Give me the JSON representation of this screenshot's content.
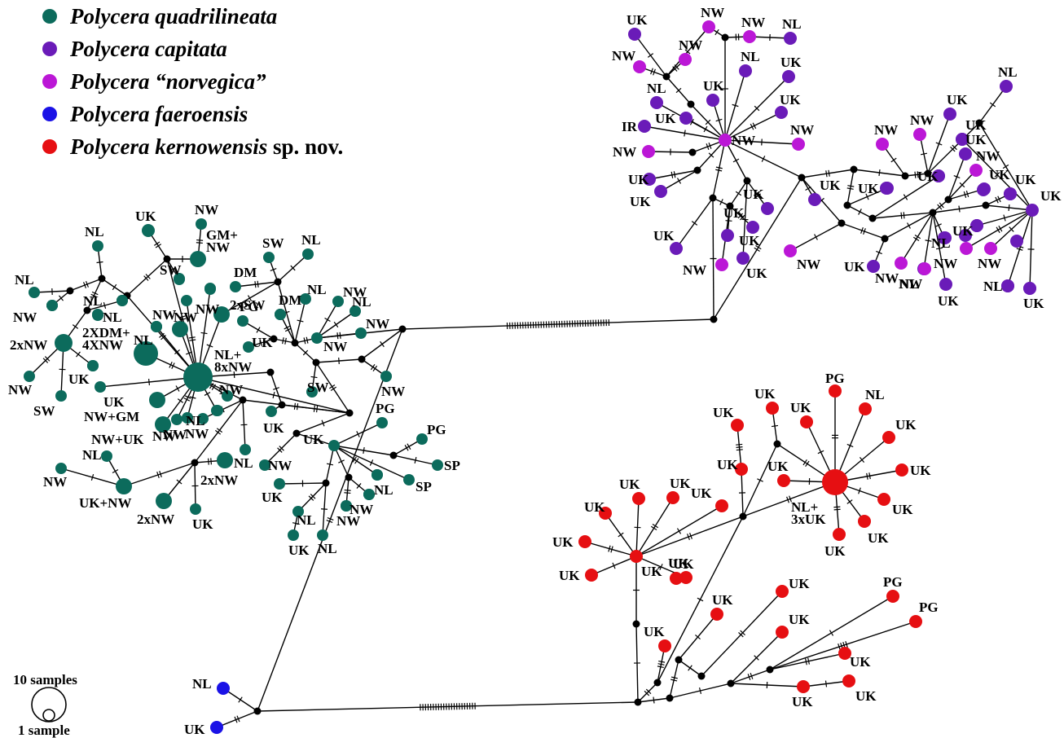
{
  "colors": {
    "quadrilineata": "#0c6b5c",
    "capitata": "#6a1bb8",
    "norvegica": "#bb17d6",
    "faeroensis": "#1a12e6",
    "kernowensis": "#e60f12",
    "black": "#000000"
  },
  "legend": [
    {
      "key": "quadrilineata",
      "name": "Polycera quadrilineata",
      "suffix": ""
    },
    {
      "key": "capitata",
      "name": "Polycera capitata",
      "suffix": ""
    },
    {
      "key": "norvegica",
      "name": "Polycera “norvegica”",
      "suffix": ""
    },
    {
      "key": "faeroensis",
      "name": "Polycera faeroensis",
      "suffix": ""
    },
    {
      "key": "kernowensis",
      "name": "Polycera kernowensis",
      "suffix": " sp. nov."
    }
  ],
  "scale": {
    "large": "10 samples",
    "small": "1 sample"
  },
  "network": {
    "nodes": [
      {
        "id": "qh",
        "s": "quadrilineata",
        "c": "NL+|8xNW",
        "r": 18
      },
      {
        "id": "q2",
        "s": "quadrilineata",
        "c": "2XDM+|4XNW",
        "r": 15
      },
      {
        "id": "q3",
        "s": "quadrilineata",
        "c": "2xNW",
        "r": 11
      },
      {
        "id": "q4",
        "s": "quadrilineata",
        "c": "UK+NW",
        "r": 10
      },
      {
        "id": "q5",
        "s": "quadrilineata",
        "c": "GM+|NW",
        "r": 10
      },
      {
        "id": "q6",
        "s": "quadrilineata",
        "c": "2xSW",
        "r": 10
      },
      {
        "id": "q7",
        "s": "quadrilineata",
        "c": "NW+GM",
        "r": 10
      },
      {
        "id": "q8",
        "s": "quadrilineata",
        "c": "NW+UK",
        "r": 10
      },
      {
        "id": "q9",
        "s": "quadrilineata",
        "c": "2xNW",
        "r": 10
      },
      {
        "id": "q10",
        "s": "quadrilineata",
        "c": "2xNW",
        "r": 10
      },
      {
        "id": "q11",
        "s": "quadrilineata",
        "c": "NW",
        "r": 10
      },
      {
        "id": "q12",
        "s": "quadrilineata",
        "c": "UK",
        "r": 8
      },
      {
        "id": "q13",
        "s": "quadrilineata",
        "c": "NL",
        "r": 7
      },
      {
        "id": "q14",
        "s": "quadrilineata",
        "c": "NL",
        "r": 7
      },
      {
        "id": "q15",
        "s": "quadrilineata",
        "c": "NW",
        "r": 7
      },
      {
        "id": "q16",
        "s": "quadrilineata",
        "c": "NW",
        "r": 7
      },
      {
        "id": "q17",
        "s": "quadrilineata",
        "c": "SW",
        "r": 7
      },
      {
        "id": "q18",
        "s": "quadrilineata",
        "c": "UK",
        "r": 7
      },
      {
        "id": "q19",
        "s": "quadrilineata",
        "c": "NW",
        "r": 7
      },
      {
        "id": "q20",
        "s": "quadrilineata",
        "c": "SW",
        "r": 7
      },
      {
        "id": "q21",
        "s": "quadrilineata",
        "c": "NL",
        "r": 7
      },
      {
        "id": "q22",
        "s": "quadrilineata",
        "c": "SW",
        "r": 7
      },
      {
        "id": "q23",
        "s": "quadrilineata",
        "c": "DM",
        "r": 7
      },
      {
        "id": "q24",
        "s": "quadrilineata",
        "c": "NL",
        "r": 7
      },
      {
        "id": "q25",
        "s": "quadrilineata",
        "c": "NW",
        "r": 7
      },
      {
        "id": "q26",
        "s": "quadrilineata",
        "c": "NL",
        "r": 7
      },
      {
        "id": "q27",
        "s": "quadrilineata",
        "c": "NW",
        "r": 7
      },
      {
        "id": "q28",
        "s": "quadrilineata",
        "c": "NW",
        "r": 7
      },
      {
        "id": "q29",
        "s": "quadrilineata",
        "c": "DM",
        "r": 7
      },
      {
        "id": "q30",
        "s": "quadrilineata",
        "c": "NL",
        "r": 7
      },
      {
        "id": "q31",
        "s": "quadrilineata",
        "c": "PG",
        "r": 7
      },
      {
        "id": "q32",
        "s": "quadrilineata",
        "c": "UK",
        "r": 7
      },
      {
        "id": "q33",
        "s": "quadrilineata",
        "c": "UK",
        "r": 7
      },
      {
        "id": "q34",
        "s": "quadrilineata",
        "c": "SW",
        "r": 7
      },
      {
        "id": "q35",
        "s": "quadrilineata",
        "c": "NW",
        "r": 7
      },
      {
        "id": "q36",
        "s": "quadrilineata",
        "c": "NW",
        "r": 7
      },
      {
        "id": "q37",
        "s": "quadrilineata",
        "c": "NW",
        "r": 7
      },
      {
        "id": "q38",
        "s": "quadrilineata",
        "c": "NL",
        "r": 7
      },
      {
        "id": "q39",
        "s": "quadrilineata",
        "c": "NL",
        "r": 7
      },
      {
        "id": "q40",
        "s": "quadrilineata",
        "c": "NW",
        "r": 7
      },
      {
        "id": "q41",
        "s": "quadrilineata",
        "c": "UK",
        "r": 7
      },
      {
        "id": "q42",
        "s": "quadrilineata",
        "c": "UK",
        "r": 7
      },
      {
        "id": "q43",
        "s": "quadrilineata",
        "c": "PG",
        "r": 7
      },
      {
        "id": "q44",
        "s": "quadrilineata",
        "c": "PG",
        "r": 7
      },
      {
        "id": "q45",
        "s": "quadrilineata",
        "c": "SP",
        "r": 7
      },
      {
        "id": "q46",
        "s": "quadrilineata",
        "c": "SP",
        "r": 7
      },
      {
        "id": "q47",
        "s": "quadrilineata",
        "c": "NW",
        "r": 7
      },
      {
        "id": "q48",
        "s": "quadrilineata",
        "c": "UK",
        "r": 7
      },
      {
        "id": "q49",
        "s": "quadrilineata",
        "c": "NL",
        "r": 7
      },
      {
        "id": "q50",
        "s": "quadrilineata",
        "c": "NW",
        "r": 7
      },
      {
        "id": "q51",
        "s": "quadrilineata",
        "c": "NW",
        "r": 7
      },
      {
        "id": "q52",
        "s": "quadrilineata",
        "c": "NL",
        "r": 7
      },
      {
        "id": "q53",
        "s": "quadrilineata",
        "c": "UK",
        "r": 7
      },
      {
        "id": "q54",
        "s": "quadrilineata",
        "c": "NL",
        "r": 7
      },
      {
        "id": "q55",
        "s": "quadrilineata",
        "c": "UK",
        "r": 7
      },
      {
        "id": "q56",
        "s": "quadrilineata",
        "c": "NL",
        "r": 7
      },
      {
        "id": "q57",
        "s": "quadrilineata",
        "c": "NL",
        "r": 7
      },
      {
        "id": "q58",
        "s": "quadrilineata",
        "c": "NL",
        "r": 7
      },
      {
        "id": "q59",
        "s": "quadrilineata",
        "c": "NW",
        "r": 7
      },
      {
        "id": "q60",
        "s": "quadrilineata",
        "c": "NW",
        "r": 7
      },
      {
        "id": "q61",
        "s": "quadrilineata",
        "c": "NW",
        "r": 7
      },
      {
        "id": "q62",
        "s": "quadrilineata",
        "c": "NW",
        "r": 7
      },
      {
        "id": "q63",
        "s": "quadrilineata",
        "c": "",
        "r": 7
      },
      {
        "id": "q64",
        "s": "quadrilineata",
        "c": "",
        "r": 7
      },
      {
        "id": "q65",
        "s": "quadrilineata",
        "c": "",
        "r": 7
      },
      {
        "id": "q66",
        "s": "quadrilineata",
        "c": "",
        "r": 7
      },
      {
        "id": "q67",
        "s": "quadrilineata",
        "c": "",
        "r": 7
      },
      {
        "id": "q68",
        "s": "quadrilineata",
        "c": "",
        "r": 7
      },
      {
        "id": "q69",
        "s": "quadrilineata",
        "c": "",
        "r": 7
      },
      {
        "id": "q70",
        "s": "quadrilineata",
        "c": "",
        "r": 7
      },
      {
        "id": "q71",
        "s": "quadrilineata",
        "c": "",
        "r": 7
      },
      {
        "id": "q72",
        "s": "quadrilineata",
        "c": "",
        "r": 7
      },
      {
        "id": "q73",
        "s": "quadrilineata",
        "c": "",
        "r": 7
      },
      {
        "id": "q74",
        "s": "quadrilineata",
        "c": "",
        "r": 7
      },
      {
        "id": "q75",
        "s": "quadrilineata",
        "c": "",
        "r": 7
      },
      {
        "id": "ch",
        "s": "norvegica",
        "c": "NW",
        "r": 8
      },
      {
        "id": "c1",
        "s": "capitata",
        "c": "UK",
        "r": 8
      },
      {
        "id": "c2",
        "s": "norvegica",
        "c": "NW",
        "r": 8
      },
      {
        "id": "c3",
        "s": "norvegica",
        "c": "NW",
        "r": 8
      },
      {
        "id": "c4",
        "s": "capitata",
        "c": "NL",
        "r": 8
      },
      {
        "id": "c5",
        "s": "norvegica",
        "c": "NW",
        "r": 8
      },
      {
        "id": "c6",
        "s": "norvegica",
        "c": "NW",
        "r": 8
      },
      {
        "id": "c7",
        "s": "capitata",
        "c": "NL",
        "r": 8
      },
      {
        "id": "c8",
        "s": "capitata",
        "c": "NL",
        "r": 8
      },
      {
        "id": "c9",
        "s": "capitata",
        "c": "UK",
        "r": 8
      },
      {
        "id": "c10",
        "s": "capitata",
        "c": "UK",
        "r": 8
      },
      {
        "id": "c11",
        "s": "capitata",
        "c": "UK",
        "r": 8
      },
      {
        "id": "c12",
        "s": "capitata",
        "c": "IR",
        "r": 8
      },
      {
        "id": "c13",
        "s": "capitata",
        "c": "UK",
        "r": 8
      },
      {
        "id": "c14",
        "s": "norvegica",
        "c": "NW",
        "r": 8
      },
      {
        "id": "c15",
        "s": "capitata",
        "c": "UK",
        "r": 8
      },
      {
        "id": "c16",
        "s": "capitata",
        "c": "UK",
        "r": 8
      },
      {
        "id": "c17",
        "s": "norvegica",
        "c": "NW",
        "r": 8
      },
      {
        "id": "c18",
        "s": "capitata",
        "c": "UK",
        "r": 8
      },
      {
        "id": "c19",
        "s": "capitata",
        "c": "UK",
        "r": 8
      },
      {
        "id": "c20",
        "s": "capitata",
        "c": "UK",
        "r": 8
      },
      {
        "id": "c21",
        "s": "capitata",
        "c": "UK",
        "r": 8
      },
      {
        "id": "c22",
        "s": "capitata",
        "c": "UK",
        "r": 8
      },
      {
        "id": "c23",
        "s": "norvegica",
        "c": "NW",
        "r": 8
      },
      {
        "id": "c24",
        "s": "norvegica",
        "c": "NW",
        "r": 8
      },
      {
        "id": "c25",
        "s": "capitata",
        "c": "UK",
        "r": 8
      },
      {
        "id": "c26",
        "s": "capitata",
        "c": "UK",
        "r": 8
      },
      {
        "id": "c27",
        "s": "norvegica",
        "c": "NW",
        "r": 8
      },
      {
        "id": "c28",
        "s": "norvegica",
        "c": "NW",
        "r": 8
      },
      {
        "id": "c29",
        "s": "norvegica",
        "c": "NW",
        "r": 8
      },
      {
        "id": "c30",
        "s": "capitata",
        "c": "UK",
        "r": 8
      },
      {
        "id": "c31",
        "s": "capitata",
        "c": "UK",
        "r": 8
      },
      {
        "id": "c32",
        "s": "capitata",
        "c": "NL",
        "r": 8
      },
      {
        "id": "c33",
        "s": "capitata",
        "c": "UK",
        "r": 8
      },
      {
        "id": "c34",
        "s": "capitata",
        "c": "UK",
        "r": 8
      },
      {
        "id": "c35",
        "s": "norvegica",
        "c": "NW",
        "r": 8
      },
      {
        "id": "c36",
        "s": "norvegica",
        "c": "NW",
        "r": 8
      },
      {
        "id": "c37",
        "s": "capitata",
        "c": "UK",
        "r": 8
      },
      {
        "id": "c38",
        "s": "capitata",
        "c": "UK",
        "r": 8
      },
      {
        "id": "c39",
        "s": "capitata",
        "c": "NL",
        "r": 8
      },
      {
        "id": "c40",
        "s": "norvegica",
        "c": "NW",
        "r": 8
      },
      {
        "id": "c41",
        "s": "capitata",
        "c": "NL",
        "r": 8
      },
      {
        "id": "c42",
        "s": "capitata",
        "c": "NL",
        "r": 8
      },
      {
        "id": "c43",
        "s": "capitata",
        "c": "UK",
        "r": 8
      },
      {
        "id": "c44",
        "s": "capitata",
        "c": "UK",
        "r": 8
      },
      {
        "id": "c45",
        "s": "capitata",
        "c": "UK",
        "r": 8
      },
      {
        "id": "c46",
        "s": "capitata",
        "c": "UK",
        "r": 8
      },
      {
        "id": "c47",
        "s": "capitata",
        "c": "UK",
        "r": 8
      },
      {
        "id": "c48",
        "s": "norvegica",
        "c": "NW",
        "r": 8
      },
      {
        "id": "c49",
        "s": "capitata",
        "c": "",
        "r": 8
      },
      {
        "id": "c50",
        "s": "capitata",
        "c": "",
        "r": 8
      },
      {
        "id": "c51",
        "s": "capitata",
        "c": "",
        "r": 8
      },
      {
        "id": "c52",
        "s": "capitata",
        "c": "",
        "r": 8
      },
      {
        "id": "c53",
        "s": "capitata",
        "c": "",
        "r": 8
      },
      {
        "id": "c54",
        "s": "capitata",
        "c": "",
        "r": 8
      },
      {
        "id": "c55",
        "s": "capitata",
        "c": "",
        "r": 8
      },
      {
        "id": "c56",
        "s": "capitata",
        "c": "",
        "r": 8
      },
      {
        "id": "c57",
        "s": "capitata",
        "c": "",
        "r": 8
      },
      {
        "id": "c58",
        "s": "capitata",
        "c": "",
        "r": 8
      },
      {
        "id": "c59",
        "s": "capitata",
        "c": "",
        "r": 8
      },
      {
        "id": "kh",
        "s": "kernowensis",
        "c": "NL+|3xUK",
        "r": 16
      },
      {
        "id": "k1",
        "s": "kernowensis",
        "c": "PG",
        "r": 8
      },
      {
        "id": "k2",
        "s": "kernowensis",
        "c": "NL",
        "r": 8
      },
      {
        "id": "k3",
        "s": "kernowensis",
        "c": "UK",
        "r": 8
      },
      {
        "id": "k4",
        "s": "kernowensis",
        "c": "UK",
        "r": 8
      },
      {
        "id": "k5",
        "s": "kernowensis",
        "c": "UK",
        "r": 8
      },
      {
        "id": "k6",
        "s": "kernowensis",
        "c": "UK",
        "r": 8
      },
      {
        "id": "k7",
        "s": "kernowensis",
        "c": "UK",
        "r": 8
      },
      {
        "id": "k8",
        "s": "kernowensis",
        "c": "UK",
        "r": 8
      },
      {
        "id": "k9",
        "s": "kernowensis",
        "c": "UK",
        "r": 8
      },
      {
        "id": "k10",
        "s": "kernowensis",
        "c": "UK",
        "r": 8
      },
      {
        "id": "k11",
        "s": "kernowensis",
        "c": "UK",
        "r": 8
      },
      {
        "id": "k12",
        "s": "kernowensis",
        "c": "UK",
        "r": 8
      },
      {
        "id": "k13",
        "s": "kernowensis",
        "c": "UK",
        "r": 8
      },
      {
        "id": "kh2",
        "s": "kernowensis",
        "c": "UK",
        "r": 8
      },
      {
        "id": "k14",
        "s": "kernowensis",
        "c": "UK",
        "r": 8
      },
      {
        "id": "k15",
        "s": "kernowensis",
        "c": "UK",
        "r": 8
      },
      {
        "id": "k16",
        "s": "kernowensis",
        "c": "UK",
        "r": 8
      },
      {
        "id": "k17",
        "s": "kernowensis",
        "c": "UK",
        "r": 8
      },
      {
        "id": "k18",
        "s": "kernowensis",
        "c": "UK",
        "r": 8
      },
      {
        "id": "k19",
        "s": "kernowensis",
        "c": "UK",
        "r": 8
      },
      {
        "id": "k20",
        "s": "kernowensis",
        "c": "UK",
        "r": 8
      },
      {
        "id": "k21",
        "s": "kernowensis",
        "c": "UK",
        "r": 8
      },
      {
        "id": "k22",
        "s": "kernowensis",
        "c": "UK",
        "r": 8
      },
      {
        "id": "k23",
        "s": "kernowensis",
        "c": "UK",
        "r": 8
      },
      {
        "id": "k24",
        "s": "kernowensis",
        "c": "PG",
        "r": 8
      },
      {
        "id": "k25",
        "s": "kernowensis",
        "c": "PG",
        "r": 8
      },
      {
        "id": "k26",
        "s": "kernowensis",
        "c": "UK",
        "r": 8
      },
      {
        "id": "k27",
        "s": "kernowensis",
        "c": "UK",
        "r": 8
      },
      {
        "id": "k28",
        "s": "kernowensis",
        "c": "UK",
        "r": 8
      },
      {
        "id": "k29",
        "s": "kernowensis",
        "c": "UK",
        "r": 8
      },
      {
        "id": "f1",
        "s": "faeroensis",
        "c": "NL",
        "r": 8
      },
      {
        "id": "f2",
        "s": "faeroensis",
        "c": "UK",
        "r": 8
      }
    ]
  }
}
